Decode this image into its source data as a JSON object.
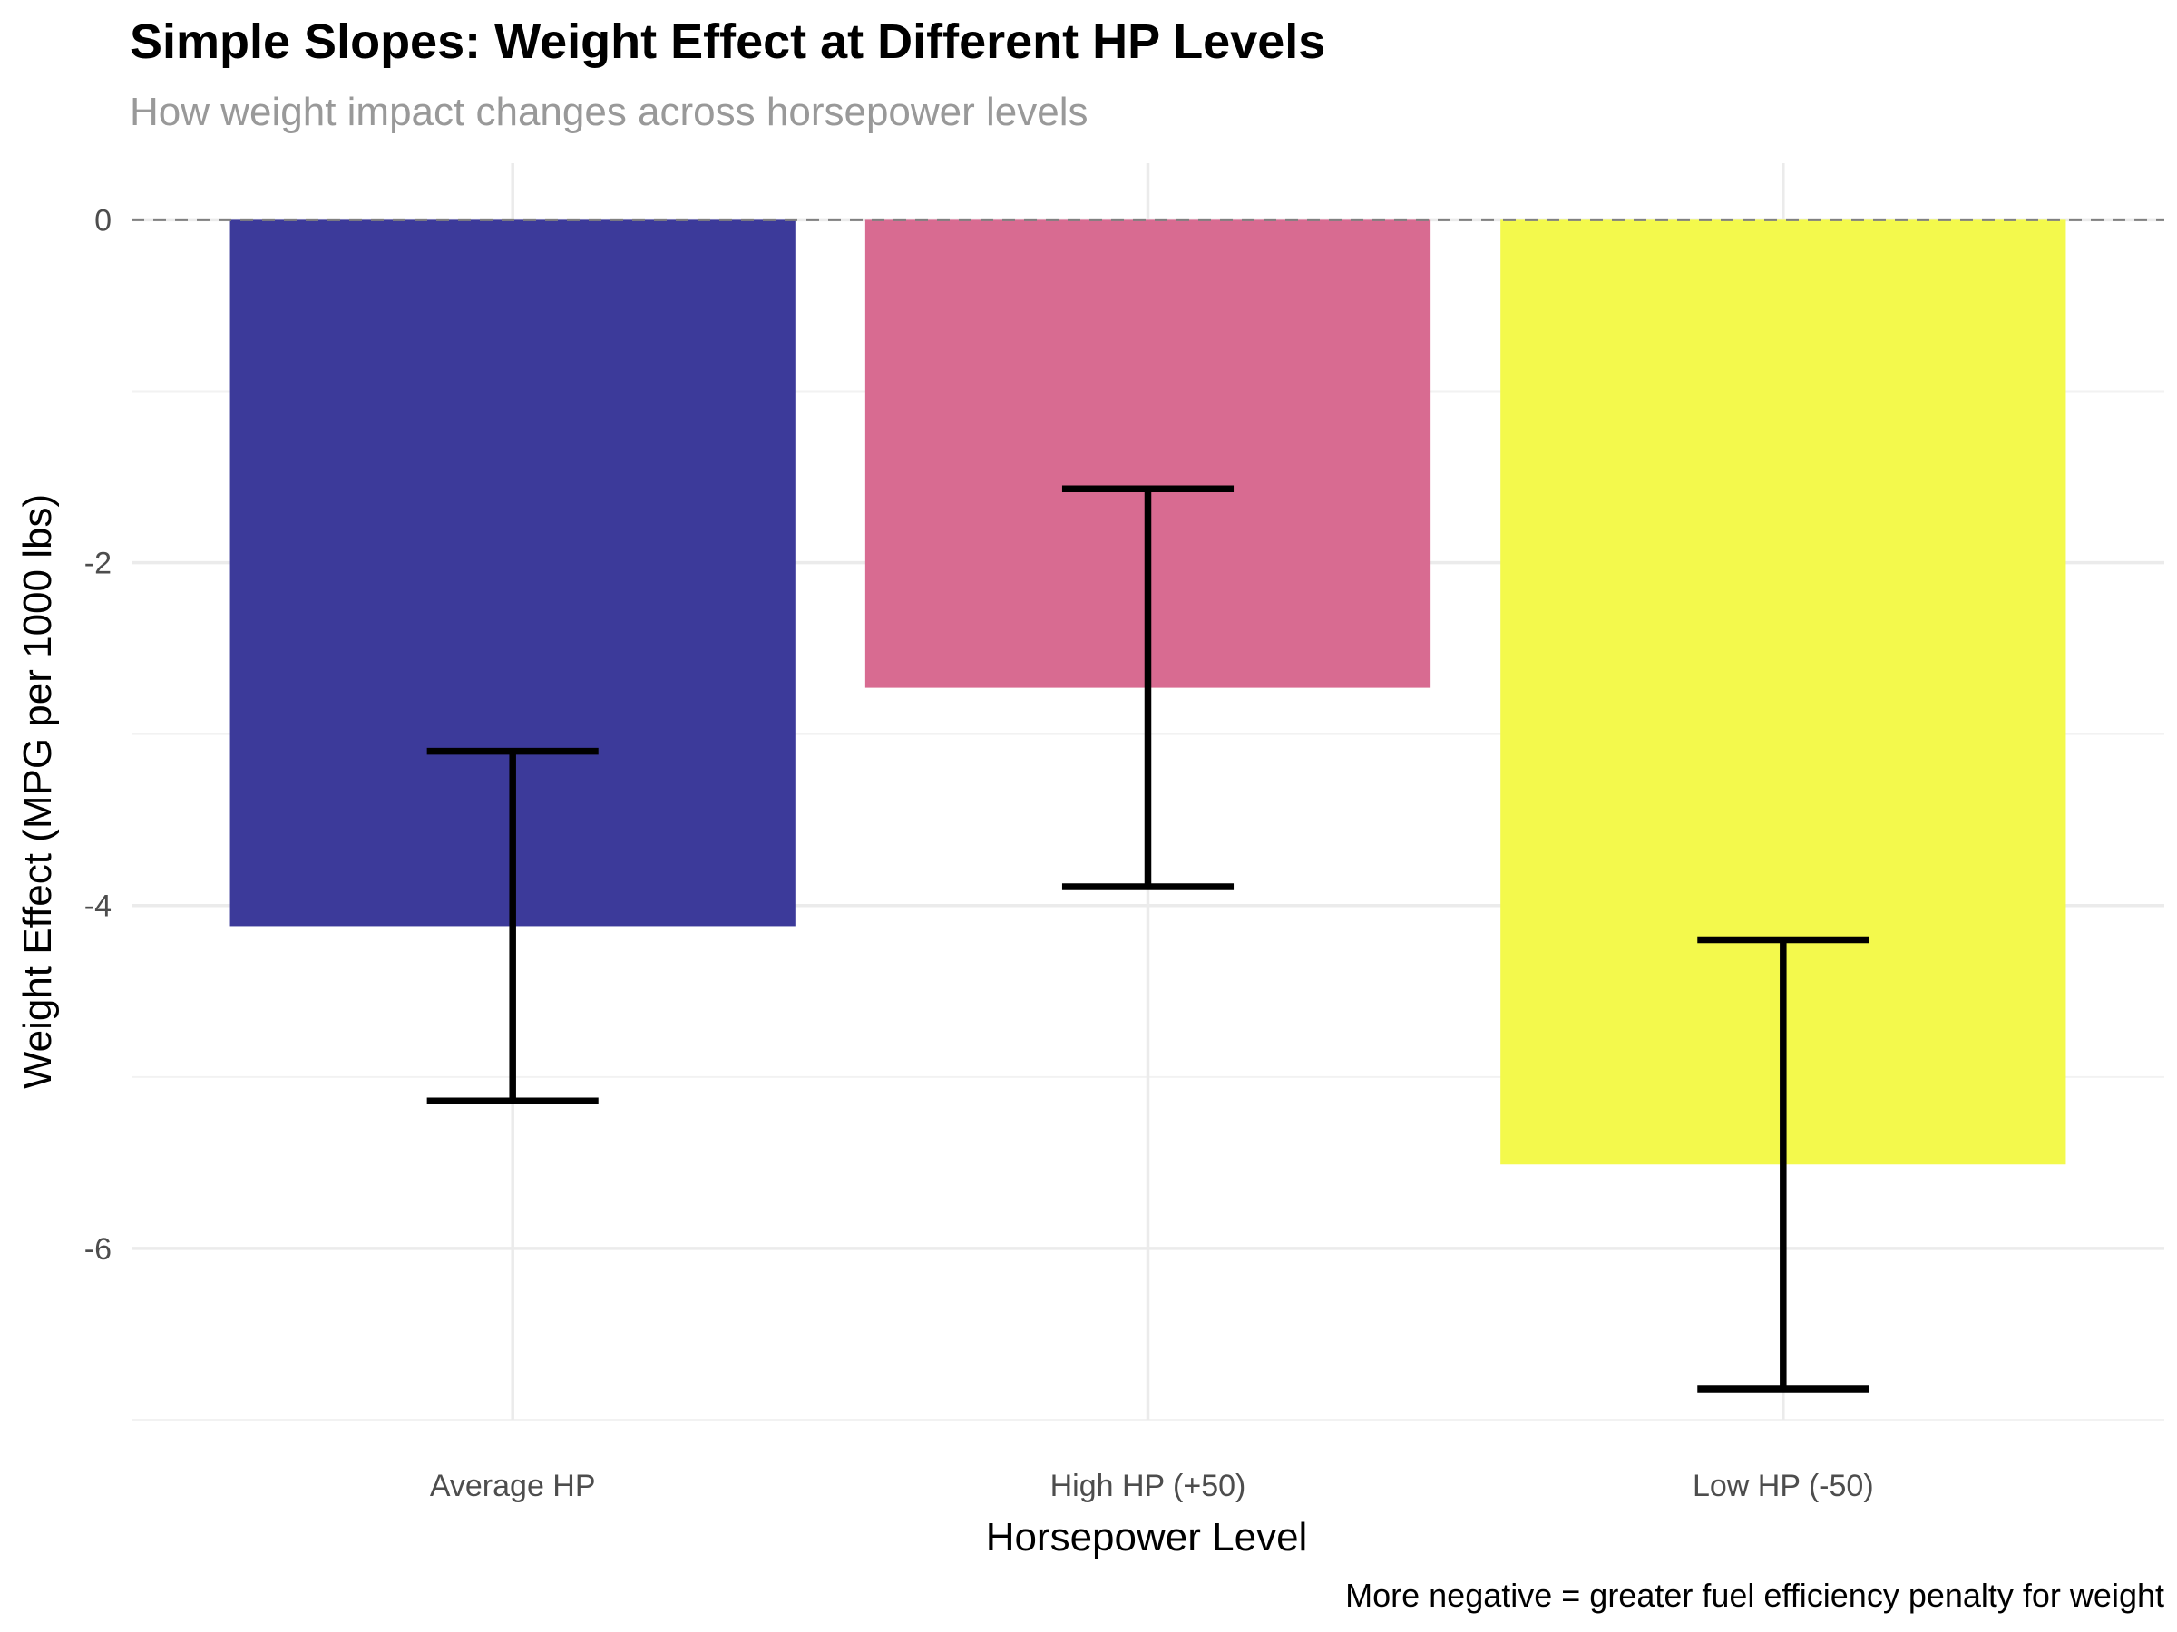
{
  "chart_data": {
    "type": "bar",
    "title": "Simple Slopes: Weight Effect at Different HP Levels",
    "subtitle": "How weight impact changes across horsepower levels",
    "x_label": "Horsepower Level",
    "y_label": "Weight Effect (MPG per 1000 lbs)",
    "caption": "More negative = greater fuel efficiency penalty for weight",
    "categories": [
      "Average HP",
      "High HP (+50)",
      "Low HP (-50)"
    ],
    "values": [
      -4.12,
      -2.73,
      -5.51
    ],
    "errors": [
      1.02,
      1.16,
      1.31
    ],
    "colors": [
      "#3c3a9a",
      "#d86b91",
      "#f3f94c"
    ],
    "ylim": [
      -7,
      0.33
    ],
    "yticks": [
      -6,
      -4,
      -2,
      0
    ],
    "minor_yticks": [
      -7,
      -5,
      -3,
      -1
    ],
    "hline": 0,
    "grid": true
  }
}
